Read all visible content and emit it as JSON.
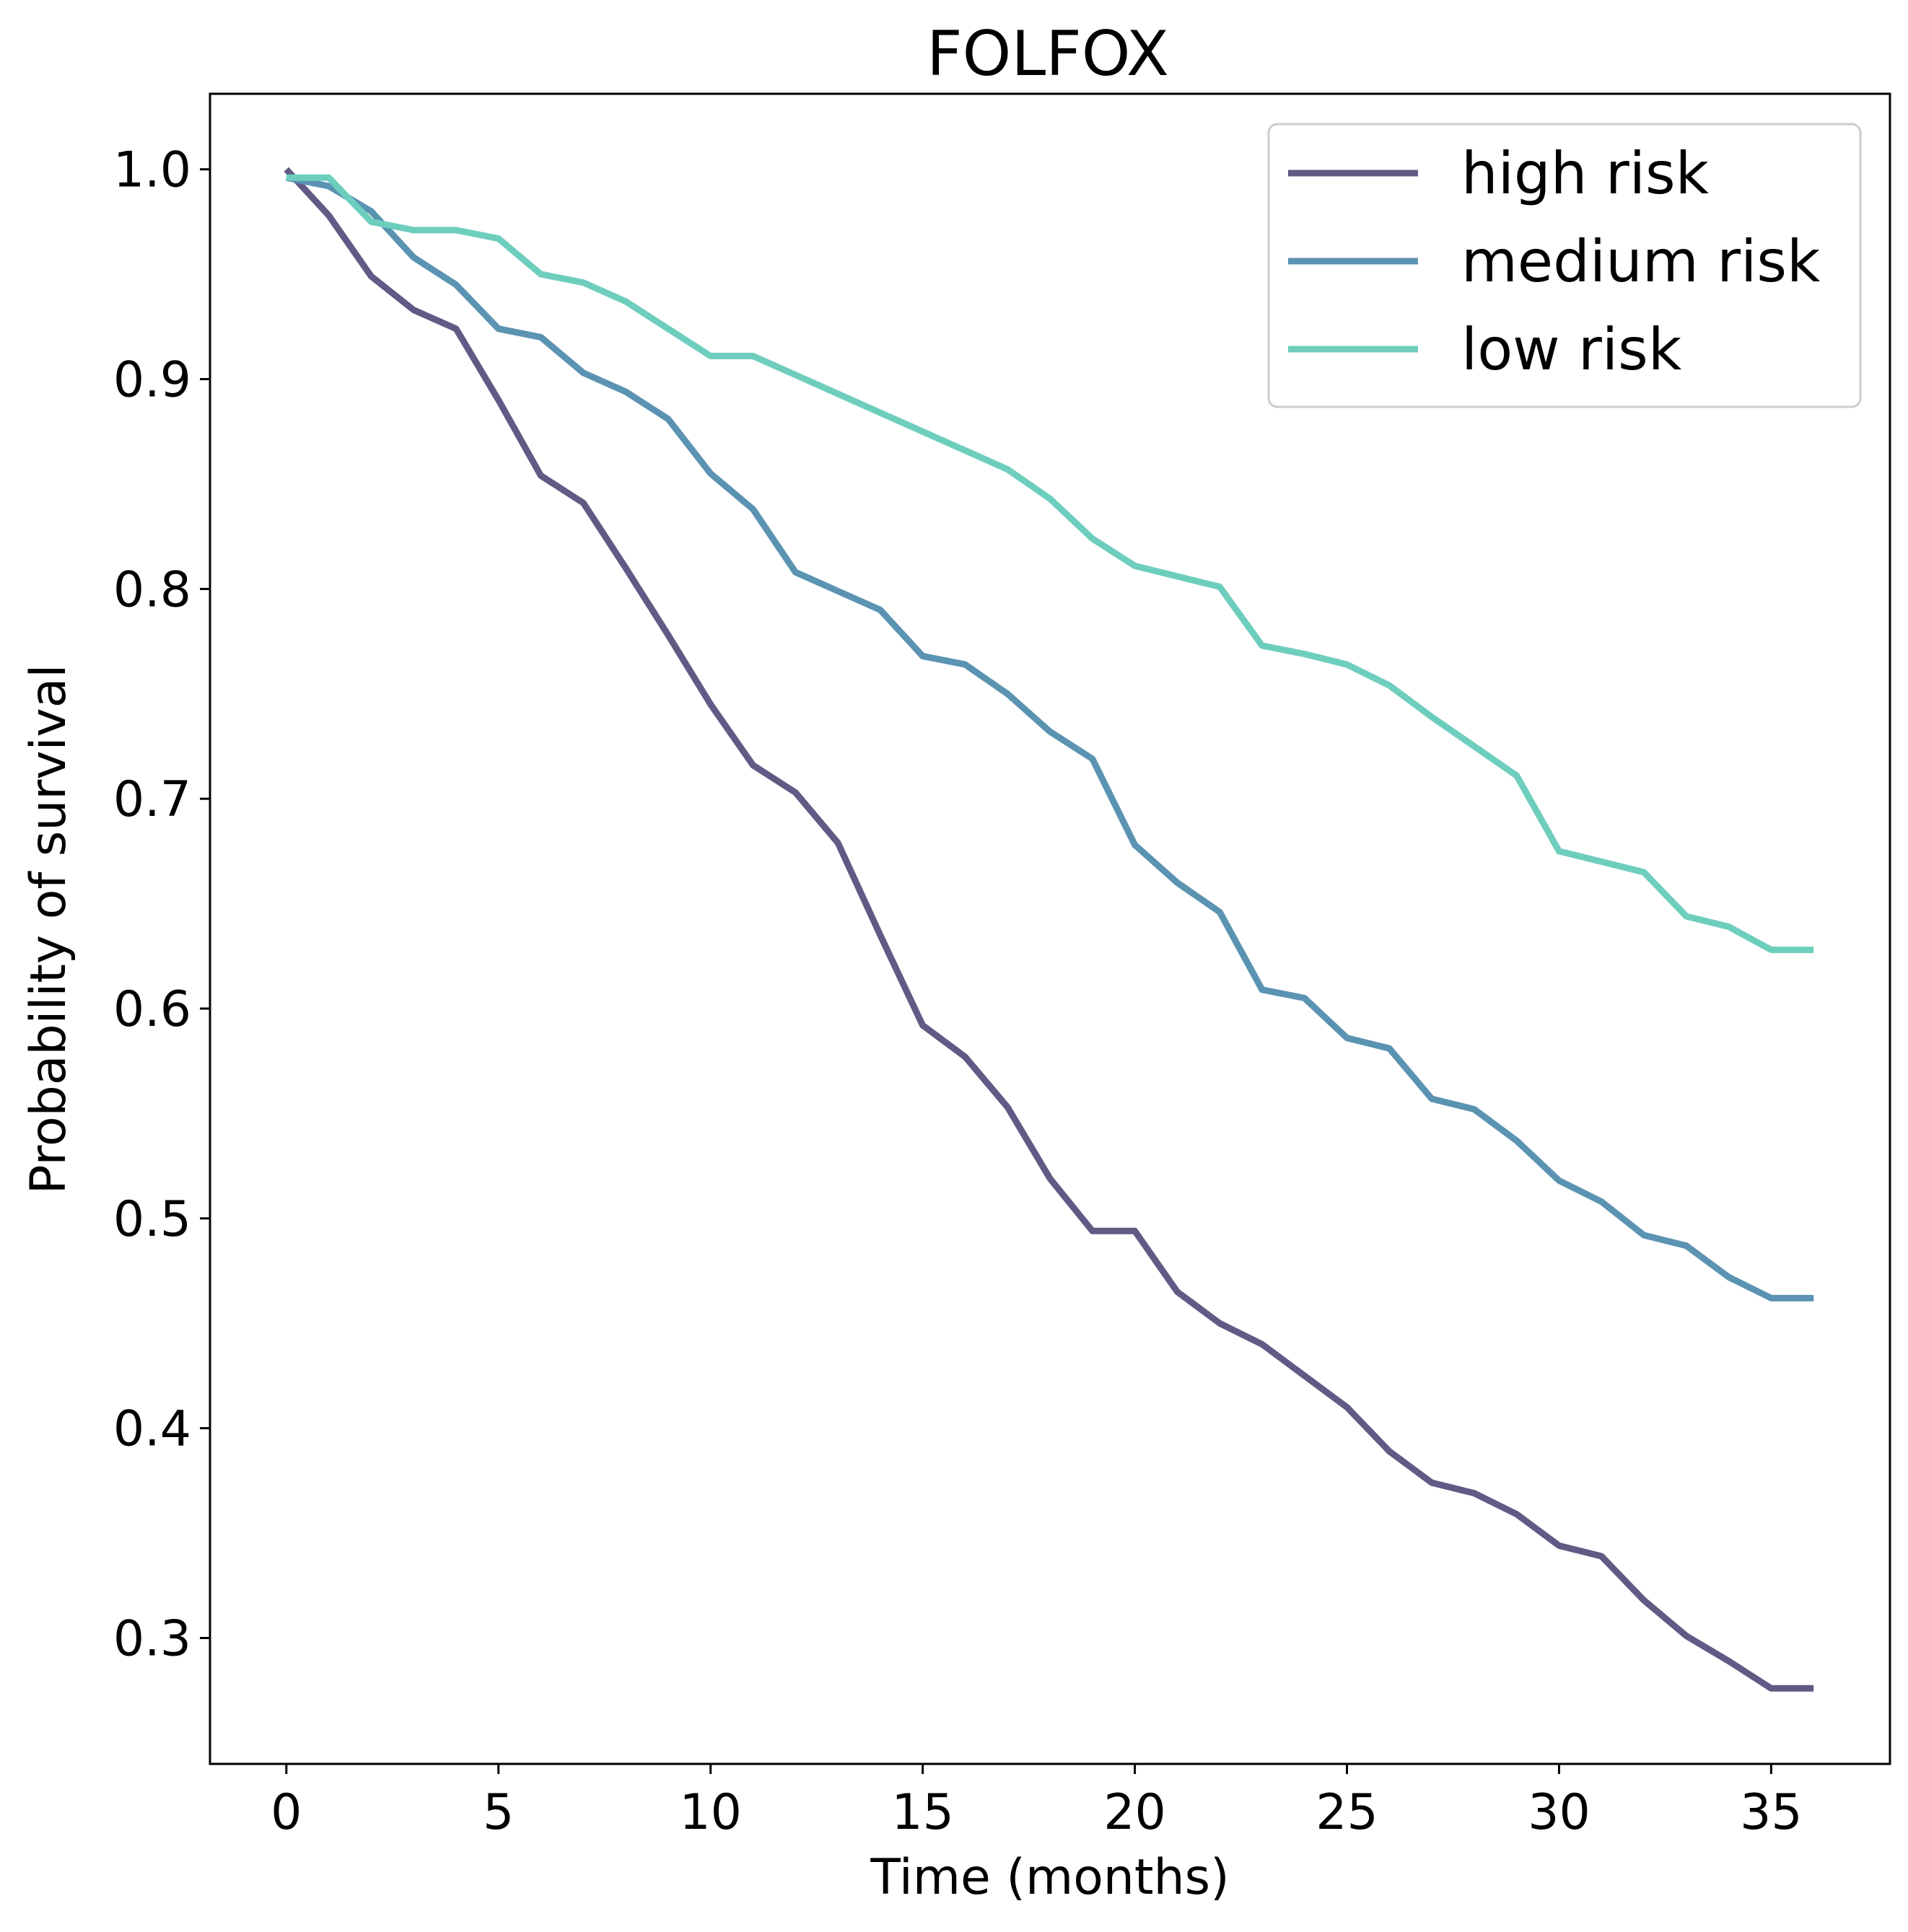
{
  "chart_data": {
    "type": "line",
    "title": "FOLFOX",
    "xlabel": "Time (months)",
    "ylabel": "Probability of survival",
    "xlim": [
      -1.8,
      37.8
    ],
    "ylim": [
      0.24,
      1.036
    ],
    "xticks": [
      0,
      5,
      10,
      15,
      20,
      25,
      30,
      35
    ],
    "xtick_labels": [
      "0",
      "5",
      "10",
      "15",
      "20",
      "25",
      "30",
      "35"
    ],
    "yticks": [
      0.3,
      0.4,
      0.5,
      0.6,
      0.7,
      0.8,
      0.9,
      1.0
    ],
    "ytick_labels": [
      "0.3",
      "0.4",
      "0.5",
      "0.6",
      "0.7",
      "0.8",
      "0.9",
      "1.0"
    ],
    "grid": false,
    "legend_position": "top-right",
    "x": [
      0,
      1,
      2,
      3,
      4,
      5,
      6,
      7,
      8,
      9,
      10,
      11,
      12,
      13,
      14,
      15,
      16,
      17,
      18,
      19,
      20,
      21,
      22,
      23,
      24,
      25,
      26,
      27,
      28,
      29,
      30,
      31,
      32,
      33,
      34,
      35,
      36
    ],
    "series": [
      {
        "name": "high risk",
        "color": "#625a85",
        "values": [
          1.0,
          0.978,
          0.949,
          0.933,
          0.924,
          0.89,
          0.854,
          0.841,
          0.81,
          0.778,
          0.745,
          0.716,
          0.703,
          0.679,
          0.635,
          0.592,
          0.577,
          0.553,
          0.519,
          0.494,
          0.494,
          0.465,
          0.45,
          0.44,
          0.425,
          0.41,
          0.389,
          0.374,
          0.369,
          0.359,
          0.344,
          0.339,
          0.318,
          0.301,
          0.289,
          0.276,
          0.276
        ]
      },
      {
        "name": "medium risk",
        "color": "#5b93b2",
        "values": [
          0.996,
          0.992,
          0.98,
          0.958,
          0.945,
          0.924,
          0.92,
          0.903,
          0.894,
          0.881,
          0.855,
          0.838,
          0.808,
          0.799,
          0.79,
          0.768,
          0.764,
          0.75,
          0.732,
          0.719,
          0.678,
          0.66,
          0.646,
          0.609,
          0.605,
          0.586,
          0.581,
          0.557,
          0.552,
          0.537,
          0.518,
          0.508,
          0.492,
          0.487,
          0.472,
          0.462,
          0.462
        ]
      },
      {
        "name": "low risk",
        "color": "#6ecebd",
        "values": [
          0.996,
          0.996,
          0.975,
          0.971,
          0.971,
          0.967,
          0.95,
          0.946,
          0.937,
          0.924,
          0.911,
          0.911,
          0.902,
          0.893,
          0.884,
          0.875,
          0.866,
          0.857,
          0.843,
          0.824,
          0.811,
          0.806,
          0.801,
          0.773,
          0.769,
          0.764,
          0.754,
          0.739,
          0.725,
          0.711,
          0.675,
          0.67,
          0.665,
          0.644,
          0.639,
          0.628,
          0.628
        ]
      }
    ]
  }
}
